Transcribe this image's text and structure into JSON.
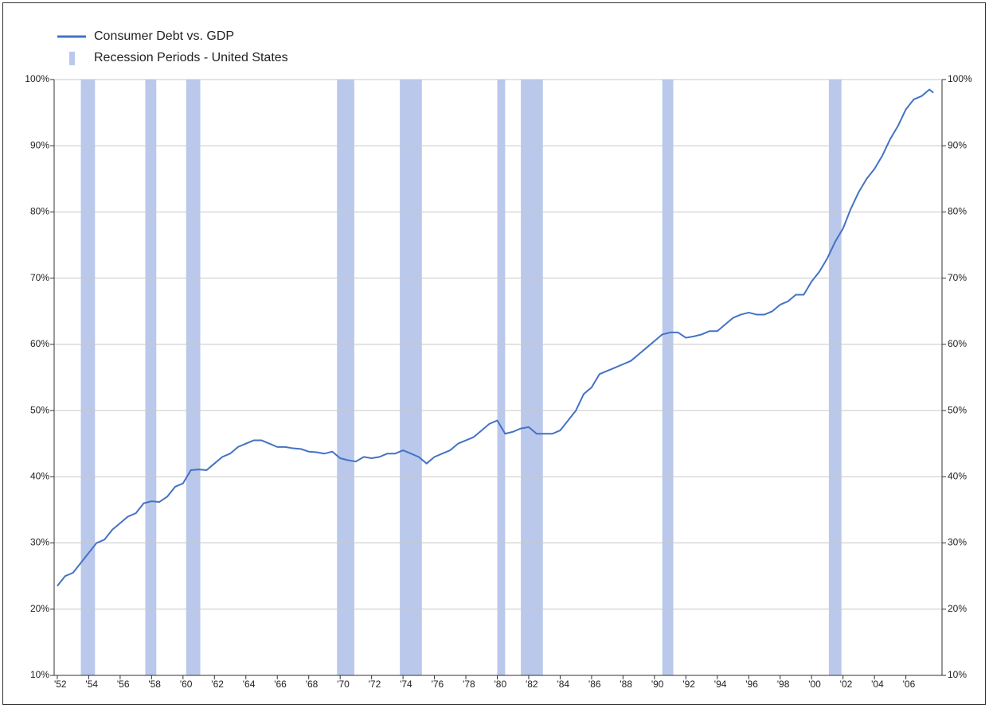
{
  "chart_data": {
    "type": "line",
    "x": [
      1952,
      1952.5,
      1953,
      1953.5,
      1954,
      1954.5,
      1955,
      1955.5,
      1956,
      1956.5,
      1957,
      1957.5,
      1958,
      1958.5,
      1959,
      1959.5,
      1960,
      1960.5,
      1961,
      1961.5,
      1962,
      1962.5,
      1963,
      1963.5,
      1964,
      1964.5,
      1965,
      1965.5,
      1966,
      1966.5,
      1967,
      1967.5,
      1968,
      1968.5,
      1969,
      1969.5,
      1970,
      1970.5,
      1971,
      1971.5,
      1972,
      1972.5,
      1973,
      1973.5,
      1974,
      1974.5,
      1975,
      1975.5,
      1976,
      1976.5,
      1977,
      1977.5,
      1978,
      1978.5,
      1979,
      1979.5,
      1980,
      1980.5,
      1981,
      1981.5,
      1982,
      1982.5,
      1983,
      1983.5,
      1984,
      1984.5,
      1985,
      1985.5,
      1986,
      1986.5,
      1987,
      1987.5,
      1988,
      1988.5,
      1989,
      1989.5,
      1990,
      1990.5,
      1991,
      1991.5,
      1992,
      1992.5,
      1993,
      1993.5,
      1994,
      1994.5,
      1995,
      1995.5,
      1996,
      1996.5,
      1997,
      1997.5,
      1998,
      1998.5,
      1999,
      1999.5,
      2000,
      2000.5,
      2001,
      2001.5,
      2002,
      2002.5,
      2003,
      2003.5,
      2004,
      2004.5,
      2005,
      2005.5,
      2006,
      2006.5,
      2007,
      2007.5,
      2007.75
    ],
    "series": [
      {
        "name": "Consumer Debt vs. GDP",
        "color": "#4472c4",
        "values": [
          23.5,
          25,
          25.5,
          27,
          28.5,
          30,
          30.5,
          32,
          33,
          34,
          34.5,
          36,
          36.3,
          36.2,
          37,
          38.5,
          39,
          41,
          41.1,
          41,
          42,
          43,
          43.5,
          44.5,
          45,
          45.5,
          45.5,
          45,
          44.5,
          44.5,
          44.3,
          44.2,
          43.8,
          43.7,
          43.5,
          43.8,
          42.8,
          42.5,
          42.3,
          43,
          42.8,
          43,
          43.5,
          43.5,
          44,
          43.5,
          43,
          42,
          43,
          43.5,
          44,
          45,
          45.5,
          46,
          47,
          48,
          48.5,
          46.5,
          46.8,
          47.3,
          47.5,
          46.5,
          46.5,
          46.5,
          47,
          48.5,
          50,
          52.5,
          53.5,
          55.5,
          56,
          56.5,
          57,
          57.5,
          58.5,
          59.5,
          60.5,
          61.5,
          61.8,
          61.8,
          61,
          61.2,
          61.5,
          62,
          62,
          63,
          64,
          64.5,
          64.8,
          64.5,
          64.5,
          65,
          66,
          66.5,
          67.5,
          67.5,
          69.5,
          71,
          73,
          75.5,
          77.5,
          80.5,
          83,
          85,
          86.5,
          88.5,
          91,
          93,
          95.5,
          97,
          97.5,
          98.5,
          98
        ]
      }
    ],
    "recessions": {
      "name": "Recession Periods - United States",
      "color": "#bac8ec",
      "ranges": [
        {
          "start": 1953.5,
          "end": 1954.4
        },
        {
          "start": 1957.6,
          "end": 1958.3
        },
        {
          "start": 1960.2,
          "end": 1961.1
        },
        {
          "start": 1969.8,
          "end": 1970.9
        },
        {
          "start": 1973.8,
          "end": 1975.2
        },
        {
          "start": 1980.0,
          "end": 1980.5
        },
        {
          "start": 1981.5,
          "end": 1982.9
        },
        {
          "start": 1990.5,
          "end": 1991.2
        },
        {
          "start": 2001.1,
          "end": 2001.9
        }
      ]
    },
    "xlim": [
      1951.8,
      2008.3
    ],
    "xticks": [
      {
        "value": 1952,
        "label": "'52"
      },
      {
        "value": 1954,
        "label": "'54"
      },
      {
        "value": 1956,
        "label": "'56"
      },
      {
        "value": 1958,
        "label": "'58"
      },
      {
        "value": 1960,
        "label": "'60"
      },
      {
        "value": 1962,
        "label": "'62"
      },
      {
        "value": 1964,
        "label": "'64"
      },
      {
        "value": 1966,
        "label": "'66"
      },
      {
        "value": 1968,
        "label": "'68"
      },
      {
        "value": 1970,
        "label": "'70"
      },
      {
        "value": 1972,
        "label": "'72"
      },
      {
        "value": 1974,
        "label": "'74"
      },
      {
        "value": 1976,
        "label": "'76"
      },
      {
        "value": 1978,
        "label": "'78"
      },
      {
        "value": 1980,
        "label": "'80"
      },
      {
        "value": 1982,
        "label": "'82"
      },
      {
        "value": 1984,
        "label": "'84"
      },
      {
        "value": 1986,
        "label": "'86"
      },
      {
        "value": 1988,
        "label": "'88"
      },
      {
        "value": 1990,
        "label": "'90"
      },
      {
        "value": 1992,
        "label": "'92"
      },
      {
        "value": 1994,
        "label": "'94"
      },
      {
        "value": 1996,
        "label": "'96"
      },
      {
        "value": 1998,
        "label": "'98"
      },
      {
        "value": 2000,
        "label": "'00"
      },
      {
        "value": 2002,
        "label": "'02"
      },
      {
        "value": 2004,
        "label": "'04"
      },
      {
        "value": 2006,
        "label": "'06"
      }
    ],
    "ylim": [
      10,
      100
    ],
    "yticks": [
      {
        "value": 10,
        "label": "10%"
      },
      {
        "value": 20,
        "label": "20%"
      },
      {
        "value": 30,
        "label": "30%"
      },
      {
        "value": 40,
        "label": "40%"
      },
      {
        "value": 50,
        "label": "50%"
      },
      {
        "value": 60,
        "label": "60%"
      },
      {
        "value": 70,
        "label": "70%"
      },
      {
        "value": 80,
        "label": "80%"
      },
      {
        "value": 90,
        "label": "90%"
      },
      {
        "value": 100,
        "label": "100%"
      }
    ],
    "y2lim": [
      10,
      100
    ],
    "y2ticks": [
      {
        "value": 10,
        "label": "10%"
      },
      {
        "value": 20,
        "label": "20%"
      },
      {
        "value": 30,
        "label": "30%"
      },
      {
        "value": 40,
        "label": "40%"
      },
      {
        "value": 50,
        "label": "50%"
      },
      {
        "value": 60,
        "label": "60%"
      },
      {
        "value": 70,
        "label": "70%"
      },
      {
        "value": 80,
        "label": "80%"
      },
      {
        "value": 90,
        "label": "90%"
      },
      {
        "value": 100,
        "label": "100%"
      }
    ],
    "grid": true,
    "legend": "top-left"
  }
}
